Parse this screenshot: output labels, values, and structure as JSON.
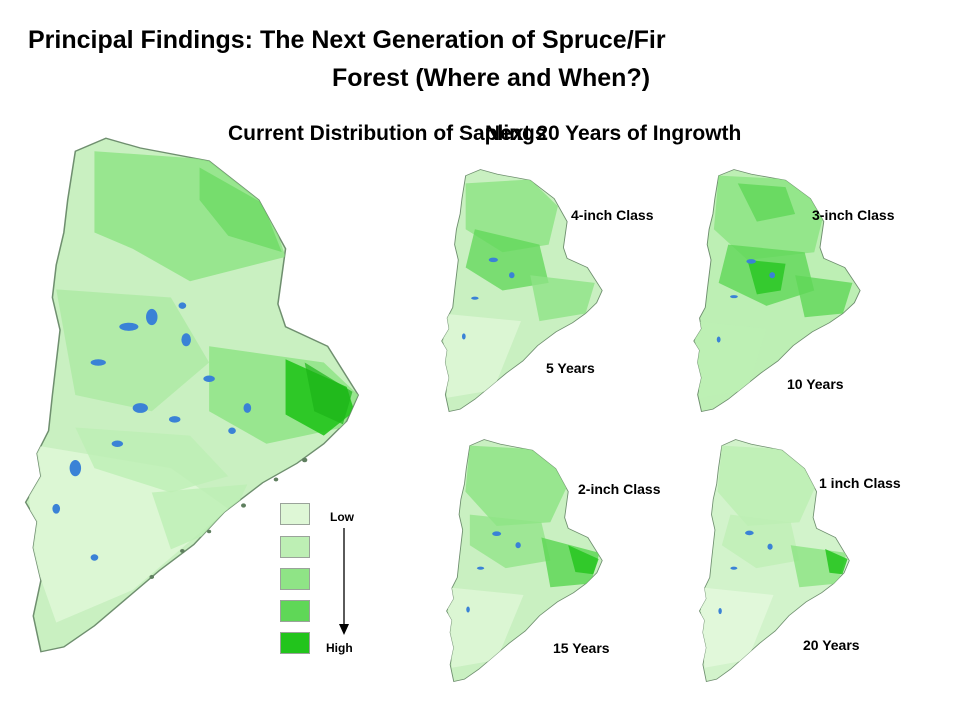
{
  "title": {
    "line1": "Principal Findings:  The Next Generation of Spruce/Fir",
    "line2": "Forest (Where and When?)"
  },
  "subtitles": {
    "left": "Current Distribution of Saplings",
    "right": "Next 20 Years of Ingrowth"
  },
  "panels": [
    {
      "class_label": "4-inch Class",
      "years_label": "5 Years"
    },
    {
      "class_label": "3-inch Class",
      "years_label": "10 Years"
    },
    {
      "class_label": "2-inch Class",
      "years_label": "15 Years"
    },
    {
      "class_label": "1 inch Class",
      "years_label": "20 Years"
    }
  ],
  "legend": {
    "low_label": "Low",
    "high_label": "High",
    "colors": [
      "#def7d6",
      "#bdefb4",
      "#8fe486",
      "#5fd757",
      "#22c41c"
    ]
  },
  "colors": {
    "water": "#3a82d6",
    "base": "#c9f0c1",
    "outline": "#5f7f5f"
  }
}
